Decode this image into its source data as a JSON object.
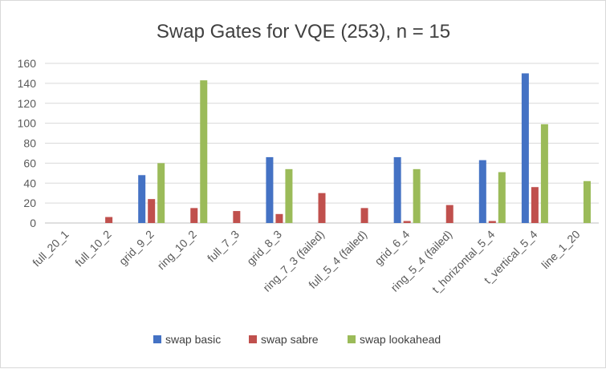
{
  "chart_data": {
    "type": "bar",
    "title": "Swap Gates for VQE (253), n = 15",
    "xlabel": "",
    "ylabel": "",
    "ylim": [
      0,
      160
    ],
    "yticks": [
      0,
      20,
      40,
      60,
      80,
      100,
      120,
      140,
      160
    ],
    "grid": true,
    "legend_position": "bottom",
    "categories": [
      "full_20_1",
      "full_10_2",
      "grid_9_2",
      "ring_10_2",
      "full_7_3",
      "grid_8_3",
      "ring_7_3 (failed)",
      "full_5_4 (failed)",
      "grid_6_4",
      "ring_5_4 (failed)",
      "t_horizontal_5_4",
      "t_vertical_5_4",
      "line_1_20"
    ],
    "series": [
      {
        "name": "swap basic",
        "color": "#4472c4",
        "values": [
          0,
          0,
          48,
          0,
          0,
          66,
          0,
          0,
          66,
          0,
          63,
          150,
          0
        ]
      },
      {
        "name": "swap sabre",
        "color": "#c0504d",
        "values": [
          0,
          6,
          24,
          15,
          12,
          9,
          30,
          15,
          2,
          18,
          2,
          36,
          0
        ]
      },
      {
        "name": "swap lookahead",
        "color": "#9bbb59",
        "values": [
          0,
          0,
          60,
          143,
          0,
          54,
          0,
          0,
          54,
          0,
          51,
          99,
          42
        ]
      }
    ]
  }
}
